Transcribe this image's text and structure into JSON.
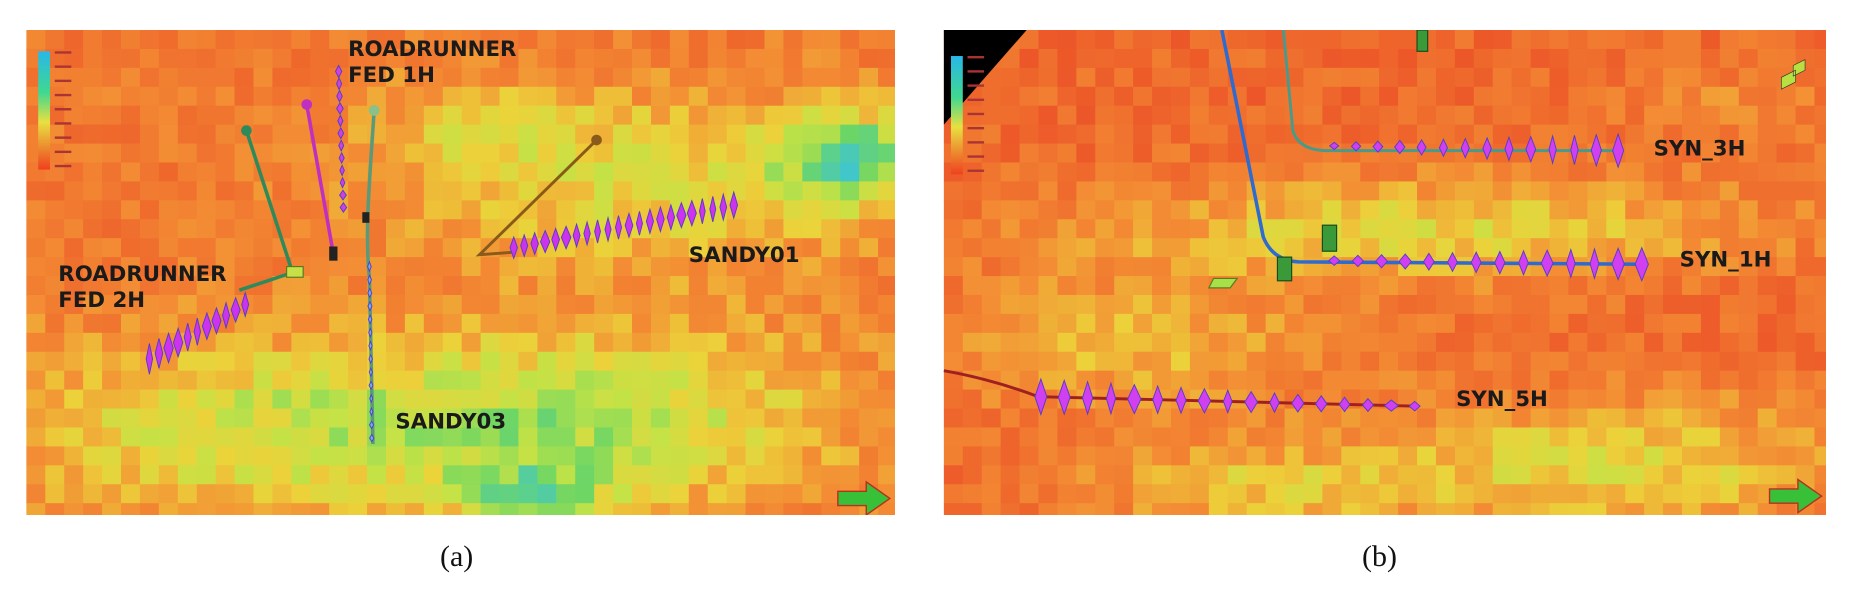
{
  "panels": [
    {
      "caption": "(a)",
      "wells": [
        {
          "label_lines": [
            "ROADRUNNER",
            "FED 1H"
          ]
        },
        {
          "label_lines": [
            "ROADRUNNER",
            "FED 2H"
          ]
        },
        {
          "label_lines": [
            "SANDY01"
          ]
        },
        {
          "label_lines": [
            "SANDY03"
          ]
        }
      ]
    },
    {
      "caption": "(b)",
      "wells": [
        {
          "label_lines": [
            "SYN_3H"
          ]
        },
        {
          "label_lines": [
            "SYN_1H"
          ]
        },
        {
          "label_lines": [
            "SYN_5H"
          ]
        }
      ]
    }
  ]
}
